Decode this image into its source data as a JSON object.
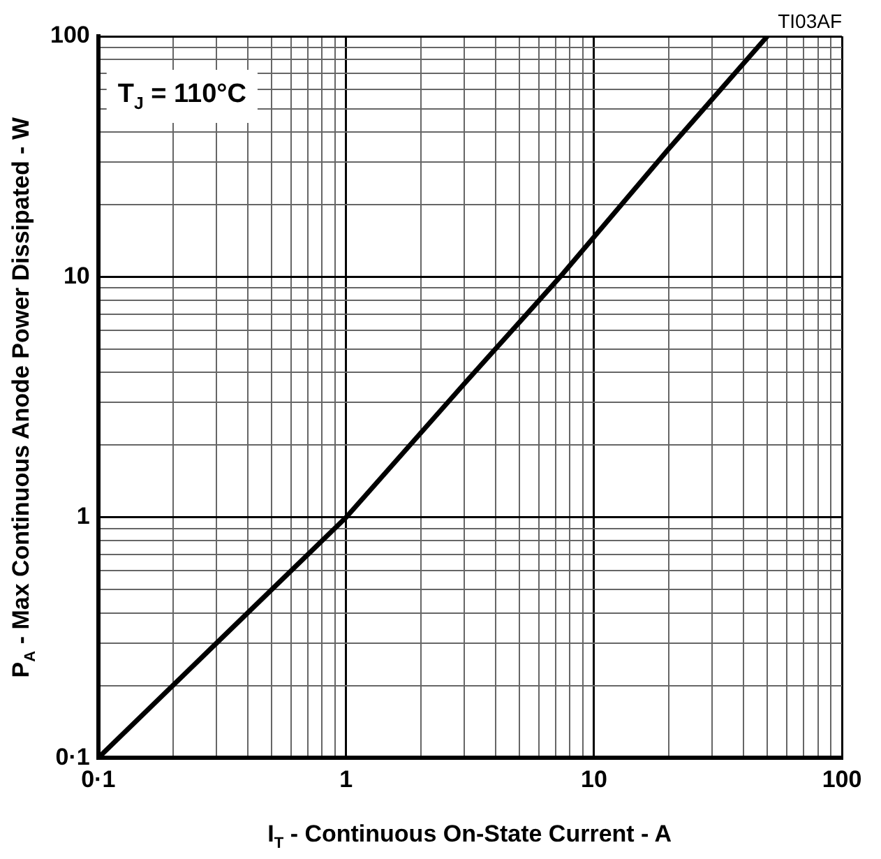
{
  "chart_data": {
    "type": "line",
    "xlabel": "I$_{T}$ - Continuous On-State Current - A",
    "ylabel": "P$_{A}$ - Max Continuous Anode Power Dissipated - W",
    "annotations": [
      "T$_{J}$ = 110°C",
      "TI03AF"
    ],
    "log": "xy",
    "grid": true,
    "legend": false,
    "marker": "none",
    "line_style": "solid",
    "xlim": [
      0.1,
      100
    ],
    "ylim": [
      0.1,
      100
    ],
    "xticks": [
      {
        "value": 0.1,
        "label": "0·1"
      },
      {
        "value": 0.2,
        "label": null
      },
      {
        "value": 0.3,
        "label": null
      },
      {
        "value": 0.4,
        "label": null
      },
      {
        "value": 0.5,
        "label": null
      },
      {
        "value": 0.6,
        "label": null
      },
      {
        "value": 0.7,
        "label": null
      },
      {
        "value": 0.8,
        "label": null
      },
      {
        "value": 0.9,
        "label": null
      },
      1,
      {
        "value": 2,
        "label": null
      },
      {
        "value": 3,
        "label": null
      },
      {
        "value": 4,
        "label": null
      },
      {
        "value": 5,
        "label": null
      },
      {
        "value": 6,
        "label": null
      },
      {
        "value": 7,
        "label": null
      },
      {
        "value": 8,
        "label": null
      },
      {
        "value": 9,
        "label": null
      },
      10,
      {
        "value": 20,
        "label": null
      },
      {
        "value": 30,
        "label": null
      },
      {
        "value": 40,
        "label": null
      },
      {
        "value": 50,
        "label": null
      },
      {
        "value": 60,
        "label": null
      },
      {
        "value": 70,
        "label": null
      },
      {
        "value": 80,
        "label": null
      },
      {
        "value": 90,
        "label": null
      },
      100
    ],
    "yticks": [
      {
        "value": 0.1,
        "label": "0·1"
      },
      {
        "value": 0.2,
        "label": null
      },
      {
        "value": 0.3,
        "label": null
      },
      {
        "value": 0.4,
        "label": null
      },
      {
        "value": 0.5,
        "label": null
      },
      {
        "value": 0.6,
        "label": null
      },
      {
        "value": 0.7,
        "label": null
      },
      {
        "value": 0.8,
        "label": null
      },
      {
        "value": 0.9,
        "label": null
      },
      1,
      {
        "value": 2,
        "label": null
      },
      {
        "value": 3,
        "label": null
      },
      {
        "value": 4,
        "label": null
      },
      {
        "value": 5,
        "label": null
      },
      {
        "value": 6,
        "label": null
      },
      {
        "value": 7,
        "label": null
      },
      {
        "value": 8,
        "label": null
      },
      {
        "value": 9,
        "label": null
      },
      10,
      {
        "value": 20,
        "label": null
      },
      {
        "value": 30,
        "label": null
      },
      {
        "value": 40,
        "label": null
      },
      {
        "value": 50,
        "label": null
      },
      {
        "value": 60,
        "label": null
      },
      {
        "value": 70,
        "label": null
      },
      {
        "value": 80,
        "label": null
      },
      {
        "value": 90,
        "label": null
      },
      100
    ],
    "series": [
      {
        "color": "#000000",
        "x": [
          0.1,
          0.3,
          1,
          3,
          7.3,
          20,
          50
        ],
        "values": [
          0.1,
          0.3,
          1,
          3.6,
          10,
          34,
          100
        ]
      }
    ]
  }
}
